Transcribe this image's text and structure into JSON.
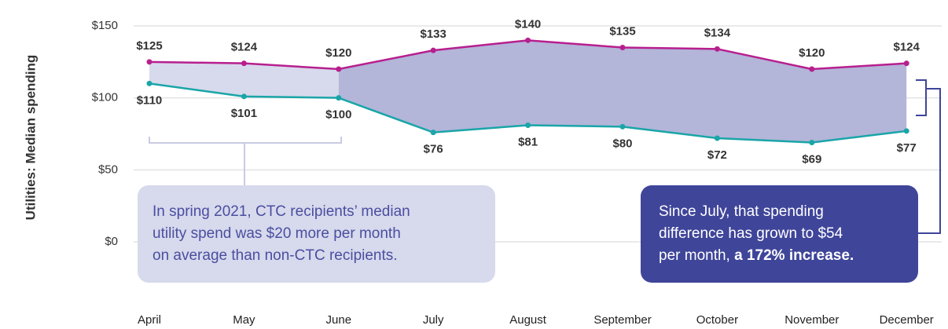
{
  "chart_data": {
    "type": "line",
    "y_label": "Utilities: Median spending",
    "categories": [
      "April",
      "May",
      "June",
      "July",
      "August",
      "September",
      "October",
      "November",
      "December"
    ],
    "series": [
      {
        "name": "CTC recipients",
        "color": "#b71f8e",
        "values": [
          125,
          124,
          120,
          133,
          140,
          135,
          134,
          120,
          124
        ],
        "value_labels": [
          "$125",
          "$124",
          "$120",
          "$133",
          "$140",
          "$135",
          "$134",
          "$120",
          "$124"
        ]
      },
      {
        "name": "Non-CTC recipients",
        "color": "#1aa5a8",
        "values": [
          110,
          101,
          100,
          76,
          81,
          80,
          72,
          69,
          77
        ],
        "value_labels": [
          "$110",
          "$101",
          "$100",
          "$76",
          "$81",
          "$80",
          "$72",
          "$69",
          "$77"
        ]
      }
    ],
    "ylim": [
      0,
      150
    ],
    "yticks": [
      {
        "value": 0,
        "label": "$0"
      },
      {
        "value": 50,
        "label": "$50"
      },
      {
        "value": 100,
        "label": "$100"
      },
      {
        "value": 150,
        "label": "$150"
      }
    ],
    "grid": true,
    "annotations": [
      {
        "lines": [
          "In spring 2021, CTC recipients’ median",
          "utility spend was  $20 more per month",
          "on average than non-CTC recipients."
        ]
      },
      {
        "lines": [
          "Since July, that spending",
          "difference has grown to $54",
          "per month, "
        ],
        "bold": "a 172% increase."
      }
    ]
  }
}
